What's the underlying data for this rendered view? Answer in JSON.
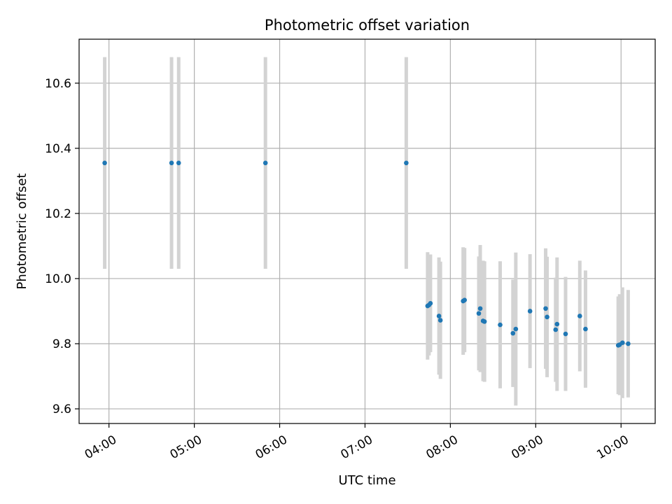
{
  "chart_data": {
    "type": "scatter",
    "title": "Photometric offset variation",
    "xlabel": "UTC time",
    "ylabel": "Photometric offset",
    "xlim": [
      "03:39",
      "10:24"
    ],
    "ylim": [
      9.555,
      10.735
    ],
    "x_ticks": [
      "04:00",
      "05:00",
      "06:00",
      "07:00",
      "08:00",
      "09:00",
      "10:00"
    ],
    "y_ticks": [
      9.6,
      9.8,
      10.0,
      10.2,
      10.4,
      10.6
    ],
    "y_tick_labels": [
      "9.6",
      "9.8",
      "10.0",
      "10.2",
      "10.4",
      "10.6"
    ],
    "grid": true,
    "marker_color": "#1f77b4",
    "errorbar_color": "#d3d3d3",
    "series": [
      {
        "points": [
          {
            "x": "03:57",
            "y": 10.355,
            "err": 0.325
          },
          {
            "x": "04:44",
            "y": 10.355,
            "err": 0.325
          },
          {
            "x": "04:49",
            "y": 10.355,
            "err": 0.325
          },
          {
            "x": "05:50",
            "y": 10.355,
            "err": 0.325
          },
          {
            "x": "07:29",
            "y": 10.355,
            "err": 0.325
          },
          {
            "x": "07:44",
            "y": 9.916,
            "err": 0.165
          },
          {
            "x": "07:45",
            "y": 9.919,
            "err": 0.155
          },
          {
            "x": "07:46",
            "y": 9.924,
            "err": 0.15
          },
          {
            "x": "07:52",
            "y": 9.885,
            "err": 0.18
          },
          {
            "x": "07:53",
            "y": 9.872,
            "err": 0.18
          },
          {
            "x": "08:09",
            "y": 9.931,
            "err": 0.165
          },
          {
            "x": "08:10",
            "y": 9.934,
            "err": 0.16
          },
          {
            "x": "08:20",
            "y": 9.893,
            "err": 0.175
          },
          {
            "x": "08:21",
            "y": 9.908,
            "err": 0.195
          },
          {
            "x": "08:23",
            "y": 9.87,
            "err": 0.185
          },
          {
            "x": "08:24",
            "y": 9.868,
            "err": 0.185
          },
          {
            "x": "08:35",
            "y": 9.858,
            "err": 0.195
          },
          {
            "x": "08:44",
            "y": 9.832,
            "err": 0.165
          },
          {
            "x": "08:46",
            "y": 9.845,
            "err": 0.235
          },
          {
            "x": "08:56",
            "y": 9.9,
            "err": 0.175
          },
          {
            "x": "09:07",
            "y": 9.908,
            "err": 0.185
          },
          {
            "x": "09:08",
            "y": 9.882,
            "err": 0.185
          },
          {
            "x": "09:14",
            "y": 9.843,
            "err": 0.16
          },
          {
            "x": "09:15",
            "y": 9.86,
            "err": 0.205
          },
          {
            "x": "09:21",
            "y": 9.83,
            "err": 0.175
          },
          {
            "x": "09:31",
            "y": 9.885,
            "err": 0.17
          },
          {
            "x": "09:35",
            "y": 9.845,
            "err": 0.18
          },
          {
            "x": "09:58",
            "y": 9.795,
            "err": 0.15
          },
          {
            "x": "09:59",
            "y": 9.797,
            "err": 0.155
          },
          {
            "x": "10:01",
            "y": 9.803,
            "err": 0.17
          },
          {
            "x": "10:05",
            "y": 9.8,
            "err": 0.165
          }
        ]
      }
    ]
  }
}
